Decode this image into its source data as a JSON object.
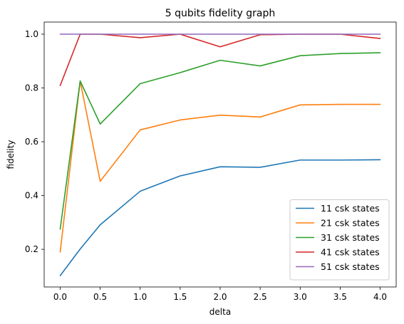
{
  "chart_data": {
    "type": "line",
    "title": "5 qubits fidelity graph",
    "xlabel": "delta",
    "ylabel": "fidelity",
    "x": [
      0.0,
      0.25,
      0.5,
      1.0,
      1.5,
      2.0,
      2.5,
      3.0,
      3.5,
      4.0
    ],
    "xlim": [
      -0.2,
      4.2
    ],
    "ylim": [
      0.06,
      1.045
    ],
    "xticks": [
      "0.0",
      "0.5",
      "1.0",
      "1.5",
      "2.0",
      "2.5",
      "3.0",
      "3.5",
      "4.0"
    ],
    "yticks": [
      "0.2",
      "0.4",
      "0.6",
      "0.8",
      "1.0"
    ],
    "legend_position": "lower-right",
    "grid": false,
    "series": [
      {
        "name": "11 csk states",
        "color": "#1f77b4",
        "values": [
          0.102,
          0.201,
          0.291,
          0.416,
          0.473,
          0.507,
          0.505,
          0.532,
          0.532,
          0.533
        ]
      },
      {
        "name": "21 csk states",
        "color": "#ff7f0e",
        "values": [
          0.19,
          0.826,
          0.453,
          0.644,
          0.681,
          0.699,
          0.692,
          0.737,
          0.739,
          0.739
        ]
      },
      {
        "name": "31 csk states",
        "color": "#2ca02c",
        "values": [
          0.275,
          0.826,
          0.666,
          0.816,
          0.857,
          0.903,
          0.882,
          0.92,
          0.928,
          0.931
        ]
      },
      {
        "name": "41 csk states",
        "color": "#d62728",
        "values": [
          0.809,
          1.0,
          1.0,
          0.987,
          1.0,
          0.953,
          0.998,
          1.0,
          1.0,
          0.984
        ]
      },
      {
        "name": "51 csk states",
        "color": "#9467bd",
        "values": [
          1.0,
          1.0,
          1.0,
          1.0,
          1.0,
          1.0,
          1.0,
          1.0,
          1.0,
          1.0
        ]
      }
    ]
  }
}
